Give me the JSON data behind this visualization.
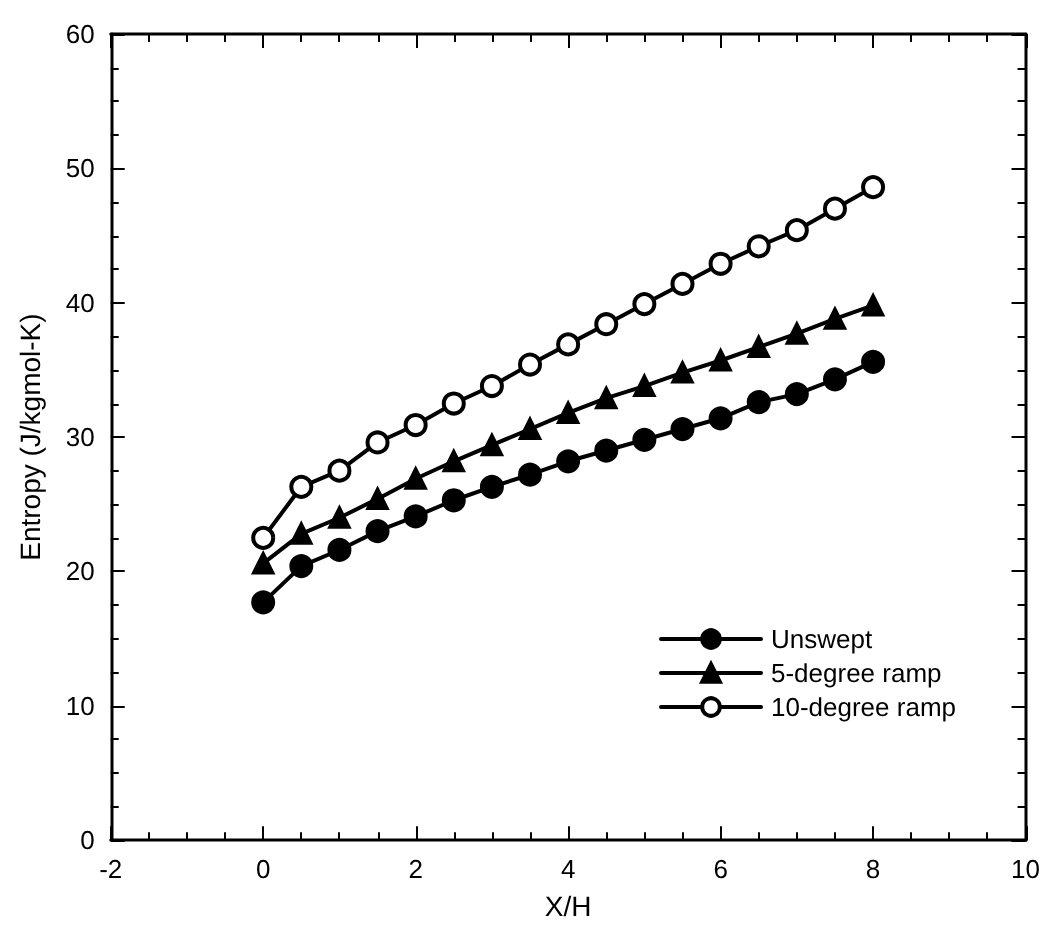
{
  "chart_data": {
    "type": "line",
    "xlabel": "X/H",
    "ylabel": "Entropy (J/kgmol-K)",
    "x": [
      0,
      0.5,
      1,
      1.5,
      2,
      2.5,
      3,
      3.5,
      4,
      4.5,
      5,
      5.5,
      6,
      6.5,
      7,
      7.5,
      8
    ],
    "xlim": [
      -2,
      10
    ],
    "xticks": [
      -2,
      0,
      2,
      4,
      6,
      8,
      10
    ],
    "ylim": [
      0,
      60
    ],
    "yticks": [
      0,
      10,
      20,
      30,
      40,
      50,
      60
    ],
    "grid": false,
    "legend": "bottom right",
    "line_style": "solid",
    "series": [
      {
        "name": "Unswept",
        "color": "#000000",
        "marker": "circle",
        "values": [
          17.7,
          20.4,
          21.6,
          23.0,
          24.1,
          25.3,
          26.3,
          27.2,
          28.2,
          29.0,
          29.8,
          30.6,
          31.4,
          32.6,
          33.2,
          34.3,
          35.6
        ]
      },
      {
        "name": "5-degree ramp",
        "color": "#000000",
        "marker": "triangle",
        "values": [
          20.6,
          22.8,
          24.0,
          25.4,
          26.9,
          28.2,
          29.4,
          30.6,
          31.8,
          32.9,
          33.8,
          34.8,
          35.7,
          36.7,
          37.7,
          38.8,
          39.8
        ]
      },
      {
        "name": "10-degree ramp",
        "color": "#000000",
        "marker": "empty-circle",
        "values": [
          22.5,
          26.3,
          27.5,
          29.6,
          30.9,
          32.5,
          33.8,
          35.4,
          36.9,
          38.4,
          39.9,
          41.4,
          42.9,
          44.2,
          45.4,
          47.0,
          48.6
        ]
      }
    ]
  }
}
